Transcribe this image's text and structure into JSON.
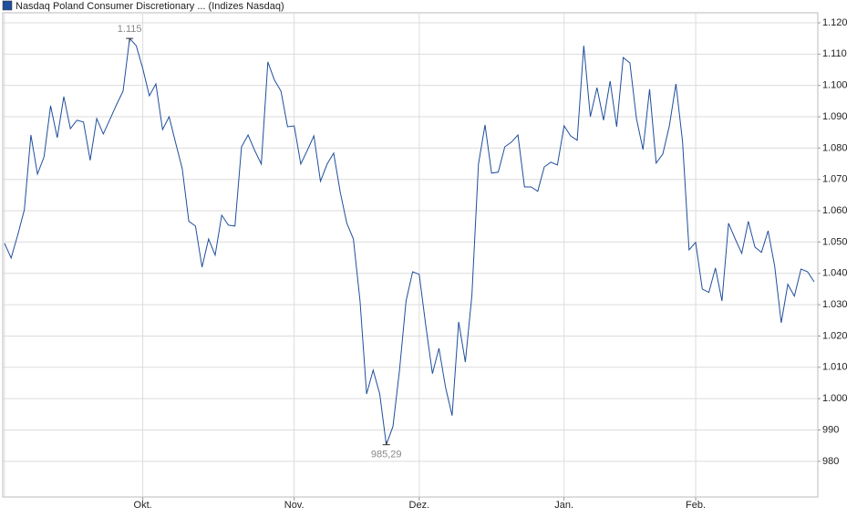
{
  "chart_data": {
    "type": "line",
    "categories": [
      null,
      null,
      null,
      null,
      null,
      null,
      null,
      null,
      null,
      null,
      null,
      null,
      null,
      null,
      null,
      null,
      null,
      null,
      null,
      null,
      null,
      "Okt.",
      null,
      null,
      null,
      null,
      null,
      null,
      null,
      null,
      null,
      null,
      null,
      null,
      null,
      null,
      null,
      null,
      null,
      null,
      null,
      null,
      null,
      null,
      "Nov.",
      null,
      null,
      null,
      null,
      null,
      null,
      null,
      null,
      null,
      null,
      null,
      null,
      null,
      null,
      null,
      null,
      null,
      null,
      "Dez.",
      null,
      null,
      null,
      null,
      null,
      null,
      null,
      null,
      null,
      null,
      null,
      null,
      null,
      null,
      null,
      null,
      null,
      null,
      null,
      null,
      null,
      "Jan.",
      null,
      null,
      null,
      null,
      null,
      null,
      null,
      null,
      null,
      null,
      null,
      null,
      null,
      null,
      null,
      null,
      null,
      null,
      null,
      "Feb.",
      null,
      null,
      null,
      null,
      null,
      null,
      null,
      null,
      null,
      null,
      null,
      null,
      null,
      null,
      null,
      null,
      null,
      null
    ],
    "series": [
      {
        "name": "Nasdaq Poland Consumer Discretionary ... (Indizes Nasdaq)",
        "color": "#1f4e9c",
        "values": [
          1049.6,
          1044.9,
          1052.2,
          1060.3,
          1084.2,
          1071.7,
          1077.2,
          1093.5,
          1083.3,
          1096.4,
          1086.2,
          1088.9,
          1088.3,
          1076.1,
          1089.4,
          1084.5,
          1089.1,
          1093.8,
          1098.2,
          1115,
          1112.7,
          1105.4,
          1096.7,
          1100.5,
          1085.9,
          1090,
          1081.6,
          1073.4,
          1056.6,
          1055.1,
          1042,
          1051,
          1045.8,
          1058.6,
          1055.4,
          1055.1,
          1080.4,
          1084.2,
          1079.3,
          1074.9,
          1107.5,
          1101.7,
          1098.2,
          1086.8,
          1087.1,
          1074.9,
          1079.3,
          1083.9,
          1069.4,
          1074.9,
          1078.4,
          1065.9,
          1056,
          1051,
          1031.2,
          1001.5,
          1009.1,
          1001.5,
          985.29,
          991.1,
          1009.1,
          1031.2,
          1040.5,
          1039.7,
          1023.4,
          1008,
          1016.1,
          1003.6,
          994.6,
          1024.5,
          1011.7,
          1033,
          1074.9,
          1087.4,
          1072,
          1072.3,
          1080.4,
          1081.9,
          1084.2,
          1067.6,
          1067.6,
          1066.2,
          1074,
          1075.5,
          1074.6,
          1087.1,
          1083.9,
          1082.5,
          1112.7,
          1090,
          1099.3,
          1088.9,
          1101.4,
          1086.8,
          1108.9,
          1107.2,
          1089.4,
          1079.5,
          1098.8,
          1075.2,
          1078.1,
          1087.1,
          1100.5,
          1082.2,
          1047.5,
          1049.9,
          1035,
          1033.9,
          1041.7,
          1031.2,
          1056,
          1051,
          1046.4,
          1056.6,
          1048.4,
          1046.7,
          1053.6,
          1042.3,
          1024.2,
          1036.5,
          1032.7,
          1041.4,
          1040.5,
          1037.3
        ],
        "value_labels": [
          null,
          null,
          null,
          null,
          null,
          null,
          null,
          null,
          null,
          null,
          null,
          null,
          null,
          null,
          null,
          null,
          null,
          null,
          null,
          "1.115",
          null,
          null,
          null,
          null,
          null,
          null,
          null,
          null,
          null,
          null,
          null,
          null,
          null,
          null,
          null,
          null,
          null,
          null,
          null,
          null,
          null,
          null,
          null,
          null,
          null,
          null,
          null,
          null,
          null,
          null,
          null,
          null,
          null,
          null,
          null,
          null,
          null,
          null,
          "985,29",
          null,
          null,
          null,
          null,
          null,
          null,
          null,
          null,
          null,
          null,
          null,
          null,
          null,
          null,
          null,
          null,
          null,
          null,
          null,
          null,
          null,
          null,
          null,
          null,
          null,
          null,
          null,
          null,
          null,
          null,
          null,
          null,
          null,
          null,
          null,
          null,
          null,
          null,
          null,
          null,
          null,
          null,
          null,
          null,
          null,
          null,
          null,
          null,
          null,
          null,
          null,
          null,
          null,
          null,
          null,
          null,
          null,
          null,
          null,
          null,
          null,
          null,
          null,
          null,
          null
        ]
      }
    ],
    "ylim": [
      968.6,
      1123.2
    ],
    "yticks": [
      980,
      990,
      {
        "value": 1000,
        "label": "1.000"
      },
      {
        "value": 1010,
        "label": "1.010"
      },
      {
        "value": 1020,
        "label": "1.020"
      },
      {
        "value": 1030,
        "label": "1.030"
      },
      {
        "value": 1040,
        "label": "1.040"
      },
      {
        "value": 1050,
        "label": "1.050"
      },
      {
        "value": 1060,
        "label": "1.060"
      },
      {
        "value": 1070,
        "label": "1.070"
      },
      {
        "value": 1080,
        "label": "1.080"
      },
      {
        "value": 1090,
        "label": "1.090"
      },
      {
        "value": 1100,
        "label": "1.100"
      },
      {
        "value": 1110,
        "label": "1.110"
      },
      {
        "value": 1120,
        "label": "1.120"
      }
    ],
    "grid": true
  }
}
